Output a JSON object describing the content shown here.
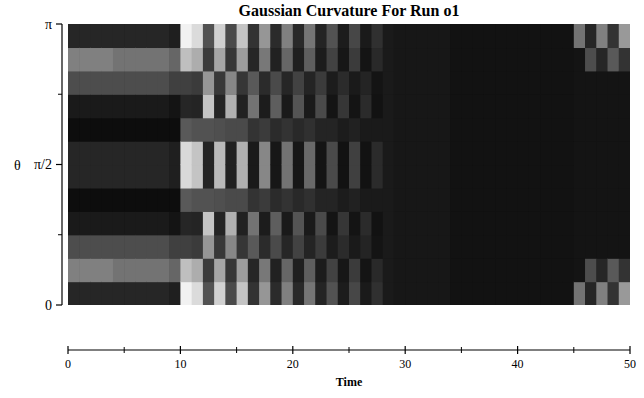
{
  "chart_data": {
    "type": "heatmap",
    "title": "Gaussian Curvature For Run o1",
    "x_label": "Time",
    "y_label": "θ",
    "xlim": [
      0,
      50
    ],
    "ylim": [
      0,
      3.14159
    ],
    "xticks": [
      0,
      10,
      20,
      30,
      40,
      50
    ],
    "minor_xticks": [
      5,
      15,
      25,
      35,
      45
    ],
    "yticks": [
      {
        "value": 0,
        "label": "0"
      },
      {
        "value": 1.5708,
        "label": "π/2"
      },
      {
        "value": 3.14159,
        "label": "π"
      }
    ],
    "minor_yticks": [
      0.7854,
      2.3562
    ],
    "zlim": [
      0,
      1
    ],
    "colors": [
      "#000000",
      "#ffffff"
    ],
    "x": [
      0.5,
      1.5,
      2.5,
      3.5,
      4.5,
      5.5,
      6.5,
      7.5,
      8.5,
      9.5,
      10.5,
      11.5,
      12.5,
      13.5,
      14.5,
      15.5,
      16.5,
      17.5,
      18.5,
      19.5,
      20.5,
      21.5,
      22.5,
      23.5,
      24.5,
      25.5,
      26.5,
      27.5,
      28.5,
      29.5,
      30.5,
      31.5,
      32.5,
      33.5,
      34.5,
      35.5,
      36.5,
      37.5,
      38.5,
      39.5,
      40.5,
      41.5,
      42.5,
      43.5,
      44.5,
      45.5,
      46.5,
      47.5,
      48.5,
      49.5
    ],
    "y": [
      0.1309,
      0.3927,
      0.6545,
      0.9163,
      1.1781,
      1.4399,
      1.7017,
      1.9635,
      2.2253,
      2.4871,
      2.7489,
      3.0107
    ],
    "cells": [
      [
        0.15,
        0.5,
        0.3,
        0.1,
        0.05,
        0.15,
        0.15,
        0.05,
        0.1,
        0.3,
        0.5,
        0.15
      ],
      [
        0.15,
        0.5,
        0.3,
        0.1,
        0.05,
        0.15,
        0.15,
        0.05,
        0.1,
        0.3,
        0.5,
        0.15
      ],
      [
        0.15,
        0.5,
        0.3,
        0.1,
        0.05,
        0.15,
        0.15,
        0.05,
        0.1,
        0.3,
        0.5,
        0.15
      ],
      [
        0.15,
        0.5,
        0.3,
        0.1,
        0.05,
        0.15,
        0.15,
        0.05,
        0.1,
        0.3,
        0.5,
        0.15
      ],
      [
        0.15,
        0.45,
        0.3,
        0.1,
        0.05,
        0.15,
        0.15,
        0.05,
        0.1,
        0.3,
        0.45,
        0.15
      ],
      [
        0.15,
        0.45,
        0.3,
        0.1,
        0.05,
        0.15,
        0.15,
        0.05,
        0.1,
        0.3,
        0.45,
        0.15
      ],
      [
        0.15,
        0.45,
        0.3,
        0.1,
        0.05,
        0.15,
        0.15,
        0.05,
        0.1,
        0.3,
        0.45,
        0.15
      ],
      [
        0.15,
        0.45,
        0.3,
        0.1,
        0.05,
        0.15,
        0.15,
        0.05,
        0.1,
        0.3,
        0.45,
        0.15
      ],
      [
        0.15,
        0.45,
        0.3,
        0.1,
        0.05,
        0.15,
        0.15,
        0.05,
        0.1,
        0.3,
        0.45,
        0.15
      ],
      [
        0.12,
        0.4,
        0.25,
        0.08,
        0.05,
        0.12,
        0.12,
        0.05,
        0.08,
        0.25,
        0.4,
        0.12
      ],
      [
        0.95,
        0.75,
        0.25,
        0.15,
        0.35,
        0.85,
        0.85,
        0.35,
        0.15,
        0.25,
        0.75,
        0.95
      ],
      [
        0.86,
        0.68,
        0.23,
        0.14,
        0.32,
        0.77,
        0.77,
        0.32,
        0.14,
        0.23,
        0.68,
        0.86
      ],
      [
        0.32,
        0.23,
        0.59,
        0.77,
        0.32,
        0.14,
        0.14,
        0.32,
        0.77,
        0.59,
        0.23,
        0.32
      ],
      [
        0.82,
        0.65,
        0.22,
        0.14,
        0.31,
        0.73,
        0.73,
        0.31,
        0.14,
        0.22,
        0.65,
        0.82
      ],
      [
        0.29,
        0.21,
        0.53,
        0.69,
        0.29,
        0.13,
        0.13,
        0.29,
        0.69,
        0.53,
        0.21,
        0.29
      ],
      [
        0.77,
        0.61,
        0.21,
        0.13,
        0.29,
        0.69,
        0.69,
        0.29,
        0.13,
        0.21,
        0.61,
        0.77
      ],
      [
        0.2,
        0.15,
        0.35,
        0.45,
        0.2,
        0.1,
        0.1,
        0.2,
        0.45,
        0.35,
        0.15,
        0.2
      ],
      [
        0.59,
        0.47,
        0.17,
        0.11,
        0.23,
        0.53,
        0.53,
        0.23,
        0.11,
        0.17,
        0.47,
        0.59
      ],
      [
        0.17,
        0.13,
        0.29,
        0.37,
        0.17,
        0.09,
        0.09,
        0.17,
        0.37,
        0.29,
        0.13,
        0.17
      ],
      [
        0.5,
        0.4,
        0.15,
        0.1,
        0.2,
        0.45,
        0.45,
        0.2,
        0.1,
        0.15,
        0.4,
        0.5
      ],
      [
        0.16,
        0.12,
        0.26,
        0.33,
        0.16,
        0.09,
        0.09,
        0.16,
        0.33,
        0.26,
        0.12,
        0.16
      ],
      [
        0.46,
        0.37,
        0.14,
        0.1,
        0.19,
        0.41,
        0.41,
        0.19,
        0.1,
        0.14,
        0.37,
        0.46
      ],
      [
        0.14,
        0.11,
        0.23,
        0.29,
        0.14,
        0.08,
        0.08,
        0.14,
        0.29,
        0.23,
        0.11,
        0.14
      ],
      [
        0.32,
        0.26,
        0.11,
        0.08,
        0.14,
        0.29,
        0.29,
        0.14,
        0.08,
        0.11,
        0.26,
        0.32
      ],
      [
        0.11,
        0.09,
        0.17,
        0.21,
        0.11,
        0.07,
        0.07,
        0.11,
        0.21,
        0.17,
        0.09,
        0.11
      ],
      [
        0.28,
        0.23,
        0.1,
        0.08,
        0.13,
        0.25,
        0.25,
        0.13,
        0.08,
        0.1,
        0.23,
        0.28
      ],
      [
        0.1,
        0.08,
        0.14,
        0.17,
        0.1,
        0.07,
        0.07,
        0.1,
        0.17,
        0.14,
        0.08,
        0.1
      ],
      [
        0.19,
        0.16,
        0.08,
        0.07,
        0.1,
        0.17,
        0.17,
        0.1,
        0.07,
        0.08,
        0.16,
        0.19
      ],
      [
        0.1,
        0.1,
        0.1,
        0.1,
        0.1,
        0.1,
        0.1,
        0.1,
        0.1,
        0.1,
        0.1,
        0.1
      ],
      [
        0.09,
        0.09,
        0.09,
        0.09,
        0.09,
        0.09,
        0.09,
        0.09,
        0.09,
        0.09,
        0.09,
        0.09
      ],
      [
        0.09,
        0.09,
        0.09,
        0.09,
        0.09,
        0.09,
        0.09,
        0.09,
        0.09,
        0.09,
        0.09,
        0.09
      ],
      [
        0.09,
        0.09,
        0.09,
        0.09,
        0.09,
        0.09,
        0.09,
        0.09,
        0.09,
        0.09,
        0.09,
        0.09
      ],
      [
        0.09,
        0.09,
        0.09,
        0.09,
        0.09,
        0.09,
        0.09,
        0.09,
        0.09,
        0.09,
        0.09,
        0.09
      ],
      [
        0.09,
        0.09,
        0.09,
        0.09,
        0.09,
        0.09,
        0.09,
        0.09,
        0.09,
        0.09,
        0.09,
        0.09
      ],
      [
        0.07,
        0.07,
        0.07,
        0.07,
        0.07,
        0.07,
        0.07,
        0.07,
        0.07,
        0.07,
        0.07,
        0.07
      ],
      [
        0.07,
        0.07,
        0.07,
        0.07,
        0.07,
        0.07,
        0.07,
        0.07,
        0.07,
        0.07,
        0.07,
        0.07
      ],
      [
        0.07,
        0.07,
        0.07,
        0.07,
        0.07,
        0.07,
        0.07,
        0.07,
        0.07,
        0.07,
        0.07,
        0.07
      ],
      [
        0.07,
        0.07,
        0.07,
        0.07,
        0.07,
        0.07,
        0.07,
        0.07,
        0.07,
        0.07,
        0.07,
        0.07
      ],
      [
        0.07,
        0.07,
        0.07,
        0.07,
        0.07,
        0.07,
        0.07,
        0.07,
        0.07,
        0.07,
        0.07,
        0.07
      ],
      [
        0.07,
        0.07,
        0.07,
        0.07,
        0.07,
        0.07,
        0.07,
        0.07,
        0.07,
        0.07,
        0.07,
        0.07
      ],
      [
        0.07,
        0.07,
        0.07,
        0.07,
        0.07,
        0.07,
        0.07,
        0.07,
        0.07,
        0.07,
        0.07,
        0.07
      ],
      [
        0.07,
        0.07,
        0.07,
        0.07,
        0.07,
        0.07,
        0.07,
        0.07,
        0.07,
        0.07,
        0.07,
        0.07
      ],
      [
        0.07,
        0.07,
        0.07,
        0.07,
        0.07,
        0.07,
        0.07,
        0.07,
        0.07,
        0.07,
        0.07,
        0.07
      ],
      [
        0.07,
        0.07,
        0.07,
        0.07,
        0.07,
        0.07,
        0.07,
        0.07,
        0.07,
        0.07,
        0.07,
        0.07
      ],
      [
        0.07,
        0.07,
        0.07,
        0.07,
        0.07,
        0.07,
        0.07,
        0.07,
        0.07,
        0.07,
        0.07,
        0.07
      ],
      [
        0.45,
        0.08,
        0.08,
        0.08,
        0.08,
        0.08,
        0.08,
        0.08,
        0.08,
        0.08,
        0.08,
        0.45
      ],
      [
        0.15,
        0.3,
        0.08,
        0.08,
        0.08,
        0.08,
        0.08,
        0.08,
        0.08,
        0.08,
        0.3,
        0.15
      ],
      [
        0.5,
        0.15,
        0.08,
        0.08,
        0.08,
        0.08,
        0.08,
        0.08,
        0.08,
        0.08,
        0.15,
        0.5
      ],
      [
        0.2,
        0.35,
        0.08,
        0.08,
        0.08,
        0.08,
        0.08,
        0.08,
        0.08,
        0.08,
        0.35,
        0.2
      ],
      [
        0.6,
        0.2,
        0.08,
        0.08,
        0.08,
        0.08,
        0.08,
        0.08,
        0.08,
        0.08,
        0.2,
        0.6
      ]
    ]
  }
}
